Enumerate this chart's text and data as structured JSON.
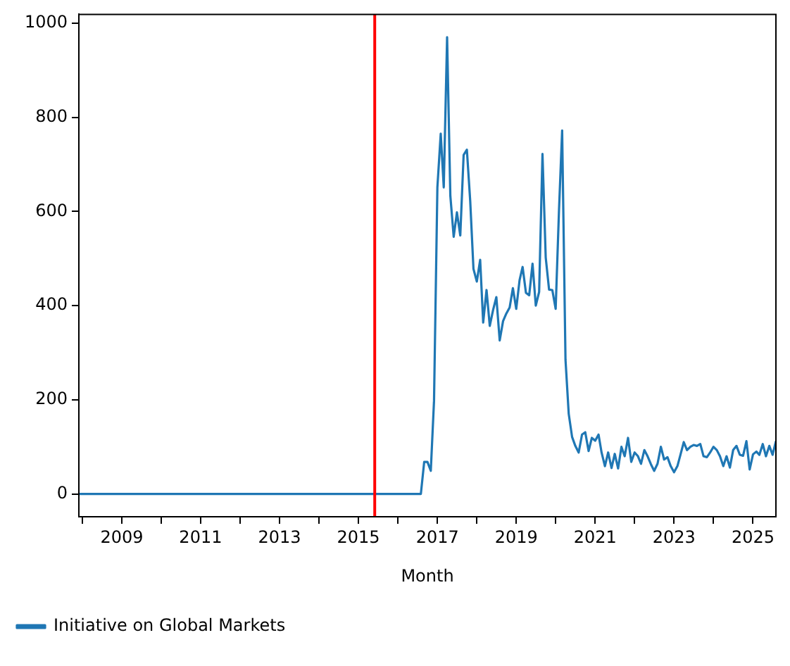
{
  "chart_data": {
    "type": "line",
    "xlabel": "Month",
    "legend": "bottom left",
    "grid": false,
    "xlim": [
      "2007-12",
      "2025-08"
    ],
    "xticks": [
      {
        "value": "2008",
        "label": null
      },
      "2009",
      {
        "value": "2010",
        "label": null
      },
      "2011",
      {
        "value": "2012",
        "label": null
      },
      "2013",
      {
        "value": "2014",
        "label": null
      },
      "2015",
      {
        "value": "2016",
        "label": null
      },
      "2017",
      {
        "value": "2018",
        "label": null
      },
      "2019",
      {
        "value": "2020",
        "label": null
      },
      "2021",
      {
        "value": "2022",
        "label": null
      },
      "2023",
      {
        "value": "2024",
        "label": null
      },
      "2025"
    ],
    "ylim": [
      -48.5,
      1018.5
    ],
    "yticks": [
      0,
      200,
      400,
      600,
      800,
      1000
    ],
    "ref_lines": [
      {
        "axis": "x",
        "value": "2015-06",
        "color": "#ff0000"
      }
    ],
    "series": [
      {
        "name": "Initiative on Global Markets",
        "color": "#1f77b4",
        "x": [
          "2007-12",
          "2016-08",
          "2016-09",
          "2016-10",
          "2016-11",
          "2016-12",
          "2017-01",
          "2017-02",
          "2017-03",
          "2017-04",
          "2017-05",
          "2017-06",
          "2017-07",
          "2017-08",
          "2017-09",
          "2017-10",
          "2017-11",
          "2017-12",
          "2018-01",
          "2018-02",
          "2018-03",
          "2018-04",
          "2018-05",
          "2018-06",
          "2018-07",
          "2018-08",
          "2018-09",
          "2018-10",
          "2018-11",
          "2018-12",
          "2019-01",
          "2019-02",
          "2019-03",
          "2019-04",
          "2019-05",
          "2019-06",
          "2019-07",
          "2019-08",
          "2019-09",
          "2019-10",
          "2019-11",
          "2019-12",
          "2020-01",
          "2020-02",
          "2020-03",
          "2020-04",
          "2020-05",
          "2020-06",
          "2020-07",
          "2020-08",
          "2020-09",
          "2020-10",
          "2020-11",
          "2020-12",
          "2021-01",
          "2021-02",
          "2021-03",
          "2021-04",
          "2021-05",
          "2021-06",
          "2021-07",
          "2021-08",
          "2021-09",
          "2021-10",
          "2021-11",
          "2021-12",
          "2022-01",
          "2022-02",
          "2022-03",
          "2022-04",
          "2022-05",
          "2022-06",
          "2022-07",
          "2022-08",
          "2022-09",
          "2022-10",
          "2022-11",
          "2022-12",
          "2023-01",
          "2023-02",
          "2023-03",
          "2023-04",
          "2023-05",
          "2023-06",
          "2023-07",
          "2023-08",
          "2023-09",
          "2023-10",
          "2023-11",
          "2023-12",
          "2024-01",
          "2024-02",
          "2024-03",
          "2024-04",
          "2024-05",
          "2024-06",
          "2024-07",
          "2024-08",
          "2024-09",
          "2024-10",
          "2024-11",
          "2024-12",
          "2025-01",
          "2025-02",
          "2025-03",
          "2025-04",
          "2025-05",
          "2025-06",
          "2025-07",
          "2025-08"
        ],
        "values": [
          0,
          0,
          68,
          68,
          49,
          198,
          651,
          765,
          651,
          970,
          633,
          546,
          598,
          549,
          720,
          731,
          622,
          478,
          451,
          497,
          364,
          433,
          357,
          391,
          418,
          326,
          367,
          383,
          396,
          437,
          393,
          454,
          482,
          427,
          422,
          489,
          400,
          429,
          722,
          502,
          434,
          433,
          393,
          603,
          772,
          285,
          170,
          121,
          102,
          88,
          126,
          131,
          91,
          119,
          113,
          126,
          88,
          59,
          88,
          55,
          85,
          54,
          100,
          80,
          119,
          68,
          88,
          80,
          64,
          93,
          80,
          63,
          49,
          64,
          100,
          73,
          78,
          59,
          46,
          59,
          83,
          110,
          93,
          100,
          104,
          102,
          106,
          80,
          78,
          88,
          100,
          93,
          80,
          59,
          80,
          56,
          93,
          102,
          83,
          81,
          112,
          52,
          84,
          90,
          83,
          106,
          80,
          102,
          83,
          112
        ]
      }
    ]
  }
}
